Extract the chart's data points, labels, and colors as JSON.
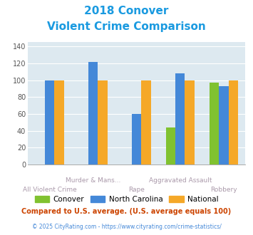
{
  "title_line1": "2018 Conover",
  "title_line2": "Violent Crime Comparison",
  "title_color": "#1A9AE0",
  "categories": [
    "All Violent Crime",
    "Murder & Mans...",
    "Rape",
    "Aggravated Assault",
    "Robbery"
  ],
  "conover": [
    null,
    null,
    null,
    44,
    97
  ],
  "north_carolina": [
    100,
    122,
    60,
    108,
    93
  ],
  "national": [
    100,
    100,
    100,
    100,
    100
  ],
  "conover_color": "#80C230",
  "nc_color": "#4488D8",
  "national_color": "#F5A828",
  "ylim": [
    0,
    145
  ],
  "yticks": [
    0,
    20,
    40,
    60,
    80,
    100,
    120,
    140
  ],
  "plot_bg": "#DDE9F0",
  "footer_text": "Compared to U.S. average. (U.S. average equals 100)",
  "footer_color": "#CC4400",
  "credit_text": "© 2025 CityRating.com - https://www.cityrating.com/crime-statistics/",
  "credit_color": "#4488D8",
  "bar_width": 0.22,
  "xlabel_color": "#AA99AA"
}
